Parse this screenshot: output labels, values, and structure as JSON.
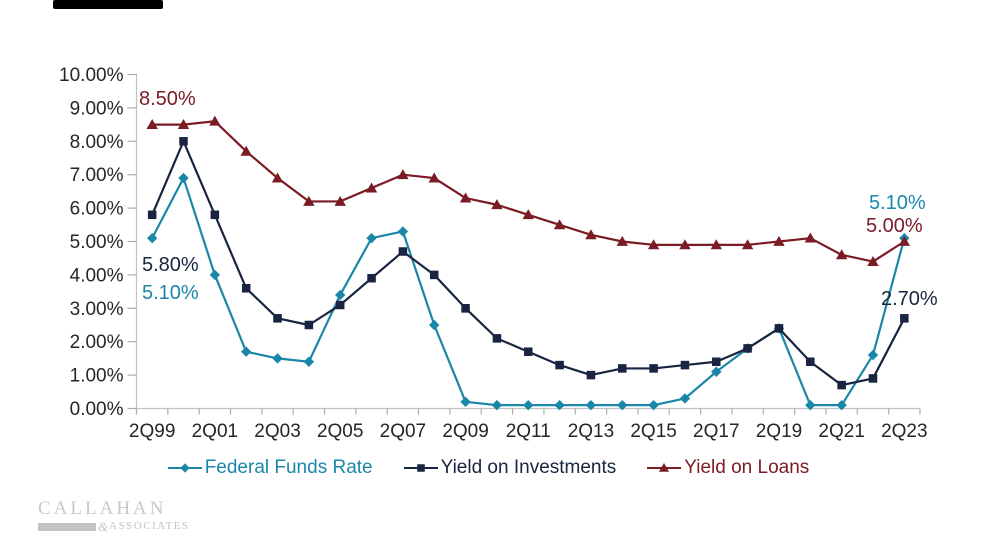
{
  "chart_data": {
    "type": "line",
    "title": "",
    "categories": [
      "2Q99",
      "2Q00",
      "2Q01",
      "2Q02",
      "2Q03",
      "2Q04",
      "2Q05",
      "2Q06",
      "2Q07",
      "2Q08",
      "2Q09",
      "2Q10",
      "2Q11",
      "2Q12",
      "2Q13",
      "2Q14",
      "2Q15",
      "2Q16",
      "2Q17",
      "2Q18",
      "2Q19",
      "2Q20",
      "2Q21",
      "2Q22",
      "2Q23"
    ],
    "x_tick_labels_shown": [
      "2Q99",
      "2Q01",
      "2Q03",
      "2Q05",
      "2Q07",
      "2Q09",
      "2Q11",
      "2Q13",
      "2Q15",
      "2Q17",
      "2Q19",
      "2Q21",
      "2Q23"
    ],
    "series": [
      {
        "name": "Federal Funds Rate",
        "color": "#1B87A8",
        "marker": "diamond",
        "values": [
          5.1,
          6.9,
          4.0,
          1.7,
          1.5,
          1.4,
          3.4,
          5.1,
          5.3,
          2.5,
          0.2,
          0.1,
          0.1,
          0.1,
          0.1,
          0.1,
          0.1,
          0.3,
          1.1,
          1.8,
          2.4,
          0.1,
          0.1,
          1.6,
          5.1
        ]
      },
      {
        "name": "Yield on Investments",
        "color": "#182440",
        "marker": "square",
        "values": [
          5.8,
          8.0,
          5.8,
          3.6,
          2.7,
          2.5,
          3.1,
          3.9,
          4.7,
          4.0,
          3.0,
          2.1,
          1.7,
          1.3,
          1.0,
          1.2,
          1.2,
          1.3,
          1.4,
          1.8,
          2.4,
          1.4,
          0.7,
          0.9,
          2.7
        ]
      },
      {
        "name": "Yield on Loans",
        "color": "#7B1B24",
        "marker": "triangle",
        "values": [
          8.5,
          8.5,
          8.6,
          7.7,
          6.9,
          6.2,
          6.2,
          6.6,
          7.0,
          6.9,
          6.3,
          6.1,
          5.8,
          5.5,
          5.2,
          5.0,
          4.9,
          4.9,
          4.9,
          4.9,
          5.0,
          5.1,
          4.6,
          4.4,
          5.0
        ]
      }
    ],
    "y_axis": {
      "min": 0,
      "max": 10,
      "step": 1,
      "tick_labels": [
        "10.00%",
        "9.00%",
        "8.00%",
        "7.00%",
        "6.00%",
        "5.00%",
        "4.00%",
        "3.00%",
        "2.00%",
        "1.00%",
        "0.00%"
      ]
    },
    "ylim": [
      0,
      10
    ],
    "grid": false,
    "legend_position": "bottom",
    "annotations": {
      "loans_start": "8.50%",
      "investments_start": "5.80%",
      "ffr_start": "5.10%",
      "ffr_end": "5.10%",
      "loans_end": "5.00%",
      "investments_end": "2.70%"
    }
  },
  "colors": {
    "axis_line": "#C2C2C2",
    "tick": "#ADADAD",
    "axis_label": "#262626"
  },
  "logo": {
    "name": "CALLAHAN",
    "ampersand": "&",
    "subname": "ASSOCIATES"
  }
}
